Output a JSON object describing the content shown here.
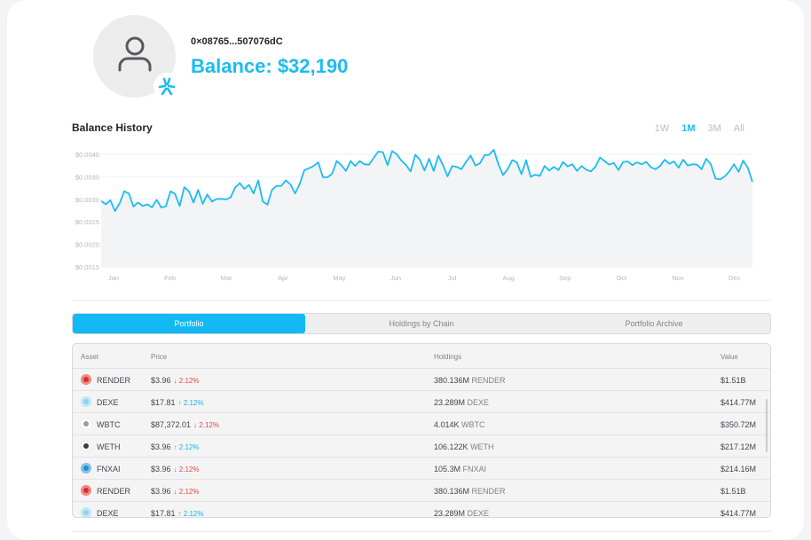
{
  "profile": {
    "address": "0×08765...507076dC",
    "balance": "Balance: $32,190",
    "avatar_icon": "user-icon",
    "badge_icon": "network-badge-icon"
  },
  "history": {
    "title": "Balance History",
    "ranges": [
      "1W",
      "1M",
      "3M",
      "All"
    ],
    "active_range": "1M"
  },
  "chart_data": {
    "type": "area",
    "title": "",
    "xlabel": "",
    "ylabel": "",
    "ylim": [
      0.0015,
      0.004
    ],
    "yticks": [
      "$0.0040",
      "$0.0035",
      "$0.0030",
      "$0.0025",
      "$0.0020",
      "$0.0015"
    ],
    "ytick_values": [
      0.004,
      0.0035,
      0.003,
      0.0025,
      0.002,
      0.0015
    ],
    "months": [
      "Jan",
      "Feb",
      "Mar",
      "Apr",
      "May",
      "Jun",
      "Jul",
      "Aug",
      "Sep",
      "Oct",
      "Nov",
      "Dec"
    ],
    "grid": true,
    "line_color": "#1bbcf2",
    "series": [
      {
        "values": [
          0.00296,
          0.00289,
          0.00298,
          0.00274,
          0.00291,
          0.00318,
          0.00313,
          0.00284,
          0.00293,
          0.00285,
          0.00289,
          0.00282,
          0.00299,
          0.00282,
          0.00284,
          0.00318,
          0.00312,
          0.00285,
          0.00327,
          0.00318,
          0.00293,
          0.00321,
          0.0029,
          0.00311,
          0.00295,
          0.00301,
          0.00301,
          0.003,
          0.00304,
          0.00326,
          0.00336,
          0.00323,
          0.00332,
          0.00313,
          0.00342,
          0.00295,
          0.00288,
          0.00321,
          0.0033,
          0.0033,
          0.00342,
          0.00333,
          0.00313,
          0.00334,
          0.00365,
          0.00369,
          0.00374,
          0.00382,
          0.00349,
          0.00349,
          0.00357,
          0.00385,
          0.00376,
          0.00363,
          0.00385,
          0.00374,
          0.00385,
          0.00378,
          0.00377,
          0.00392,
          0.00406,
          0.00405,
          0.00376,
          0.00407,
          0.004,
          0.00386,
          0.00376,
          0.00362,
          0.00399,
          0.00388,
          0.00364,
          0.0039,
          0.00363,
          0.00397,
          0.00376,
          0.00351,
          0.00374,
          0.00372,
          0.00367,
          0.00383,
          0.00397,
          0.00375,
          0.0038,
          0.00398,
          0.00399,
          0.0041,
          0.00378,
          0.00354,
          0.00367,
          0.00387,
          0.00382,
          0.00356,
          0.00387,
          0.0035,
          0.00355,
          0.00352,
          0.00374,
          0.00364,
          0.00372,
          0.00365,
          0.00383,
          0.00373,
          0.00378,
          0.00363,
          0.00374,
          0.00366,
          0.00362,
          0.00372,
          0.00393,
          0.00385,
          0.00377,
          0.00381,
          0.00365,
          0.00383,
          0.00384,
          0.00376,
          0.00382,
          0.00378,
          0.00383,
          0.00371,
          0.00367,
          0.00374,
          0.00388,
          0.00379,
          0.00384,
          0.0037,
          0.00388,
          0.00375,
          0.00378,
          0.00377,
          0.00367,
          0.0039,
          0.00378,
          0.00346,
          0.00344,
          0.00351,
          0.00362,
          0.00378,
          0.00361,
          0.00386,
          0.0037,
          0.00339
        ]
      }
    ]
  },
  "tabs": [
    {
      "label": "Portfolio",
      "active": true
    },
    {
      "label": "Holdings by Chain",
      "active": false
    },
    {
      "label": "Portfolio Archive",
      "active": false
    }
  ],
  "table": {
    "headers": {
      "asset": "Asset",
      "price": "Price",
      "holdings": "Holdings",
      "value": "Value"
    },
    "rows": [
      {
        "asset": "RENDER",
        "icon": "render-coin-icon",
        "icon_color": "#e02b2b",
        "price": "$3.96",
        "change": "2.12%",
        "direction": "down",
        "holdings": "380.136M",
        "symbol": "RENDER",
        "value": "$1.51B"
      },
      {
        "asset": "DEXE",
        "icon": "dexe-coin-icon",
        "icon_color": "#8fd3ee",
        "price": "$17.81",
        "change": "2.12%",
        "direction": "up",
        "holdings": "23.289M",
        "symbol": "DEXE",
        "value": "$414.77M"
      },
      {
        "asset": "WBTC",
        "icon": "wbtc-coin-icon",
        "icon_color": "#9a9aa0",
        "price": "$87,372.01",
        "change": "2.12%",
        "direction": "down",
        "holdings": "4.014K",
        "symbol": "WBTC",
        "value": "$350.72M"
      },
      {
        "asset": "WETH",
        "icon": "weth-coin-icon",
        "icon_color": "#3a3a40",
        "price": "$3.96",
        "change": "2.12%",
        "direction": "up",
        "holdings": "106.122K",
        "symbol": "WETH",
        "value": "$217.12M"
      },
      {
        "asset": "FNXAI",
        "icon": "fnxai-coin-icon",
        "icon_color": "#1f8fd6",
        "price": "$3.96",
        "change": "2.12%",
        "direction": "down",
        "holdings": "105.3M",
        "symbol": "FNXAI",
        "value": "$214.16M"
      },
      {
        "asset": "RENDER",
        "icon": "render-coin-icon",
        "icon_color": "#e02b2b",
        "price": "$3.96",
        "change": "2.12%",
        "direction": "down",
        "holdings": "380.136M",
        "symbol": "RENDER",
        "value": "$1.51B"
      },
      {
        "asset": "DEXE",
        "icon": "dexe-coin-icon",
        "icon_color": "#8fd3ee",
        "price": "$17.81",
        "change": "2.12%",
        "direction": "up",
        "holdings": "23.289M",
        "symbol": "DEXE",
        "value": "$414.77M"
      }
    ]
  }
}
